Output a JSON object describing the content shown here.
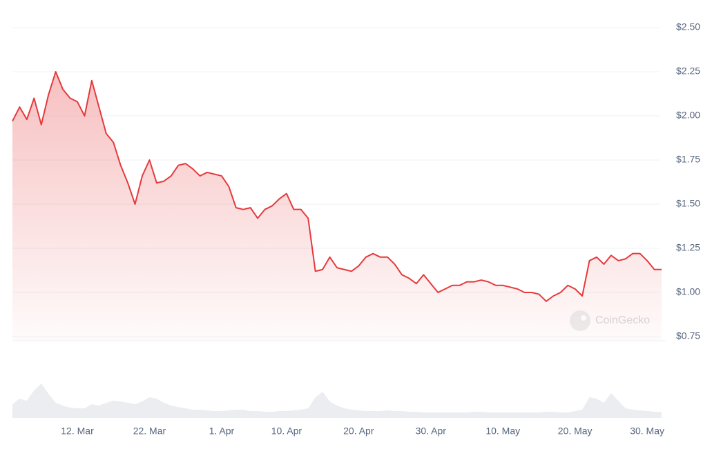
{
  "chart_data": {
    "type": "line",
    "watermark": "CoinGecko",
    "color": "#e5393b",
    "grid": true,
    "ylim": [
      0.75,
      2.5
    ],
    "yticks": [
      {
        "value": 0.75,
        "label": "$0.75"
      },
      {
        "value": 1.0,
        "label": "$1.00"
      },
      {
        "value": 1.25,
        "label": "$1.25"
      },
      {
        "value": 1.5,
        "label": "$1.50"
      },
      {
        "value": 1.75,
        "label": "$1.75"
      },
      {
        "value": 2.0,
        "label": "$2.00"
      },
      {
        "value": 2.25,
        "label": "$2.25"
      },
      {
        "value": 2.5,
        "label": "$2.50"
      }
    ],
    "categories": [
      null,
      null,
      null,
      null,
      null,
      null,
      null,
      null,
      null,
      "12. Mar",
      null,
      null,
      null,
      null,
      null,
      null,
      null,
      null,
      null,
      "22. Mar",
      null,
      null,
      null,
      null,
      null,
      null,
      null,
      null,
      null,
      "1. Apr",
      null,
      null,
      null,
      null,
      null,
      null,
      null,
      null,
      "10. Apr",
      null,
      null,
      null,
      null,
      null,
      null,
      null,
      null,
      null,
      "20. Apr",
      null,
      null,
      null,
      null,
      null,
      null,
      null,
      null,
      null,
      "30. Apr",
      null,
      null,
      null,
      null,
      null,
      null,
      null,
      null,
      null,
      "10. May",
      null,
      null,
      null,
      null,
      null,
      null,
      null,
      null,
      null,
      "20. May",
      null,
      null,
      null,
      null,
      null,
      null,
      null,
      null,
      null,
      "30. May",
      null,
      null
    ],
    "values": [
      1.97,
      2.05,
      1.98,
      2.1,
      1.95,
      2.12,
      2.25,
      2.15,
      2.1,
      2.08,
      2.0,
      2.2,
      2.05,
      1.9,
      1.85,
      1.72,
      1.62,
      1.5,
      1.66,
      1.75,
      1.62,
      1.63,
      1.66,
      1.72,
      1.73,
      1.7,
      1.66,
      1.68,
      1.67,
      1.66,
      1.6,
      1.48,
      1.47,
      1.48,
      1.42,
      1.47,
      1.49,
      1.53,
      1.56,
      1.47,
      1.47,
      1.42,
      1.12,
      1.13,
      1.2,
      1.14,
      1.13,
      1.12,
      1.15,
      1.2,
      1.22,
      1.2,
      1.2,
      1.16,
      1.1,
      1.08,
      1.05,
      1.1,
      1.05,
      1.0,
      1.02,
      1.04,
      1.04,
      1.06,
      1.06,
      1.07,
      1.06,
      1.04,
      1.04,
      1.03,
      1.02,
      1.0,
      1.0,
      0.99,
      0.95,
      0.98,
      1.0,
      1.04,
      1.02,
      0.98,
      1.18,
      1.2,
      1.16,
      1.21,
      1.18,
      1.19,
      1.22,
      1.22,
      1.18,
      1.13,
      1.13
    ],
    "volume": [
      20,
      28,
      25,
      40,
      50,
      35,
      22,
      18,
      15,
      14,
      14,
      20,
      18,
      22,
      25,
      24,
      22,
      20,
      24,
      30,
      28,
      22,
      18,
      16,
      14,
      12,
      12,
      11,
      10,
      10,
      11,
      12,
      12,
      10,
      10,
      9,
      9,
      10,
      10,
      11,
      12,
      14,
      30,
      38,
      24,
      18,
      14,
      12,
      11,
      10,
      10,
      10,
      11,
      10,
      10,
      9,
      9,
      8,
      8,
      8,
      8,
      8,
      8,
      8,
      9,
      9,
      8,
      8,
      8,
      8,
      8,
      8,
      8,
      8,
      9,
      9,
      8,
      8,
      10,
      12,
      30,
      28,
      22,
      36,
      25,
      14,
      12,
      11,
      10,
      9,
      9
    ]
  }
}
